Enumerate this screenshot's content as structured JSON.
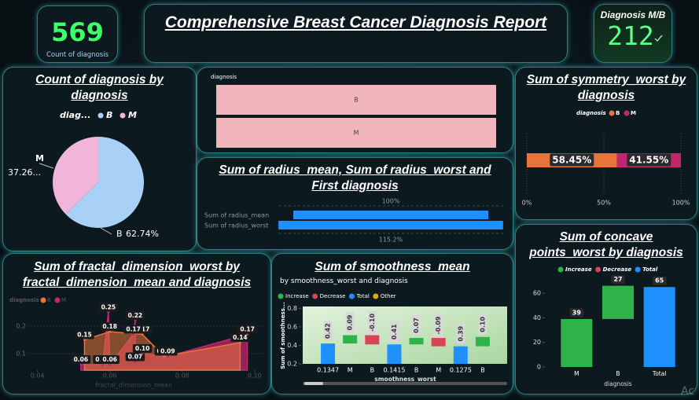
{
  "kpi_count": {
    "value": 569,
    "label": "Count of diagnosis"
  },
  "header": {
    "title": "Comprehensive Breast Cancer Diagnosis Report"
  },
  "kpi_ratio": {
    "title": "Diagnosis M/B",
    "value": 212
  },
  "watermark": "Ac",
  "chart_data": [
    {
      "type": "pie",
      "title": "Count of diagnosis by diagnosis",
      "legend_title": "diag...",
      "categories": [
        "B",
        "M"
      ],
      "values": [
        62.74,
        37.26
      ],
      "value_labels": [
        "62.74%",
        "37.26..."
      ],
      "colors": [
        "#a9d1f7",
        "#f1b5da"
      ]
    },
    {
      "type": "bar",
      "legend_title": "diagnosis",
      "categories": [
        "B",
        "M"
      ],
      "color": "#f0b6bb"
    },
    {
      "type": "funnel",
      "title": "Sum of radius_mean, Sum of radius_worst and First diagnosis",
      "categories": [
        "Sum of radius_mean",
        "Sum of radius_worst"
      ],
      "values": [
        100,
        115.2
      ],
      "value_labels": [
        "100%",
        "115.2%"
      ],
      "color": "#1e90ff"
    },
    {
      "type": "stackedbar",
      "title": "Sum of symmetry_worst by diagnosis",
      "legend_title": "diagnosis",
      "series": [
        {
          "name": "B",
          "color": "#e8743b",
          "values": [
            58.45
          ],
          "value_labels": [
            "58.45%"
          ]
        },
        {
          "name": "M",
          "color": "#c2266f",
          "values": [
            41.55
          ],
          "value_labels": [
            "41.55%"
          ]
        }
      ],
      "xlim": [
        0,
        100
      ],
      "xticks": [
        {
          "value": 0,
          "label": "0%"
        },
        {
          "value": 50,
          "label": "50%"
        },
        {
          "value": 100,
          "label": "100%"
        }
      ],
      "grid": true
    },
    {
      "type": "area",
      "title": "Sum of fractal_dimension_worst by fractal_dimension_mean and diagnosis",
      "x_label": "fractal_dimension_mean",
      "legend_title": "diagnosis",
      "series": [
        {
          "name": "B",
          "color": "#e8743b",
          "x": [
            0.053,
            0.06,
            0.069,
            0.075,
            0.096
          ],
          "values": [
            0.15,
            0.18,
            0.17,
            0.09,
            0.14
          ],
          "value_labels": [
            "0.15",
            "0.18",
            "0.17",
            "0.09",
            "0.14"
          ]
        },
        {
          "name": "M",
          "color": "#c2266f",
          "x": [
            0.052,
            0.058,
            0.0596,
            0.06,
            0.0665,
            0.067,
            0.067,
            0.069,
            0.076,
            0.098
          ],
          "values": [
            0.06,
            0.06,
            0.25,
            0.06,
            0.17,
            0.22,
            0.07,
            0.1,
            0.09,
            0.17
          ],
          "value_labels": [
            "0.06",
            "0.06",
            "0.25",
            "0.06",
            "0.17",
            "0.22",
            "0.07",
            "0.10",
            "0.09",
            "0.17"
          ]
        }
      ],
      "xlim": [
        0.034,
        0.102
      ],
      "xticks": [
        0.04,
        0.06,
        0.08,
        {
          "value": 0.1,
          "label": "0.10"
        }
      ],
      "ylim": [
        0.04,
        0.26
      ],
      "yticks": [
        0.1,
        0.2
      ],
      "grid": true
    },
    {
      "type": "waterfall",
      "title": "Sum of smoothness_mean",
      "subtitle": "by smoothness_worst and diagnosis",
      "x_label": "smoothness_worst",
      "y_label": "Sum of smoothness...",
      "legend": [
        {
          "name": "Increase",
          "color": "#2db34a"
        },
        {
          "name": "Decrease",
          "color": "#d94452"
        },
        {
          "name": "Total",
          "color": "#1e90ff"
        },
        {
          "name": "Other",
          "color": "#e8a317"
        }
      ],
      "categories": [
        "0.1347",
        "M",
        "B",
        "0.1415",
        "B",
        "M",
        "0.1275",
        "B"
      ],
      "kinds": [
        "Total",
        "Increase",
        "Decrease",
        "Total",
        "Increase",
        "Decrease",
        "Total",
        "Increase"
      ],
      "values": [
        0.42,
        0.09,
        -0.1,
        0.41,
        0.07,
        -0.09,
        0.39,
        0.1
      ],
      "value_labels": [
        "0.42",
        "0.09",
        "-0.10",
        "0.41",
        "0.07",
        "-0.09",
        "0.39",
        "0.10"
      ],
      "ylim": [
        0.2,
        0.82
      ],
      "yticks": [
        0.2,
        0.4,
        0.6,
        0.8
      ]
    },
    {
      "type": "waterfall",
      "title": "Sum of concave points_worst by diagnosis",
      "x_label": "diagnosis",
      "legend": [
        {
          "name": "Increase",
          "color": "#2db34a"
        },
        {
          "name": "Decrease",
          "color": "#d94452"
        },
        {
          "name": "Total",
          "color": "#1e90ff"
        }
      ],
      "categories": [
        "M",
        "B",
        "Total"
      ],
      "kinds": [
        "Increase",
        "Increase",
        "Total"
      ],
      "values": [
        39,
        27,
        65
      ],
      "ylim": [
        0,
        68
      ],
      "yticks": [
        0,
        20,
        40,
        60
      ]
    }
  ]
}
